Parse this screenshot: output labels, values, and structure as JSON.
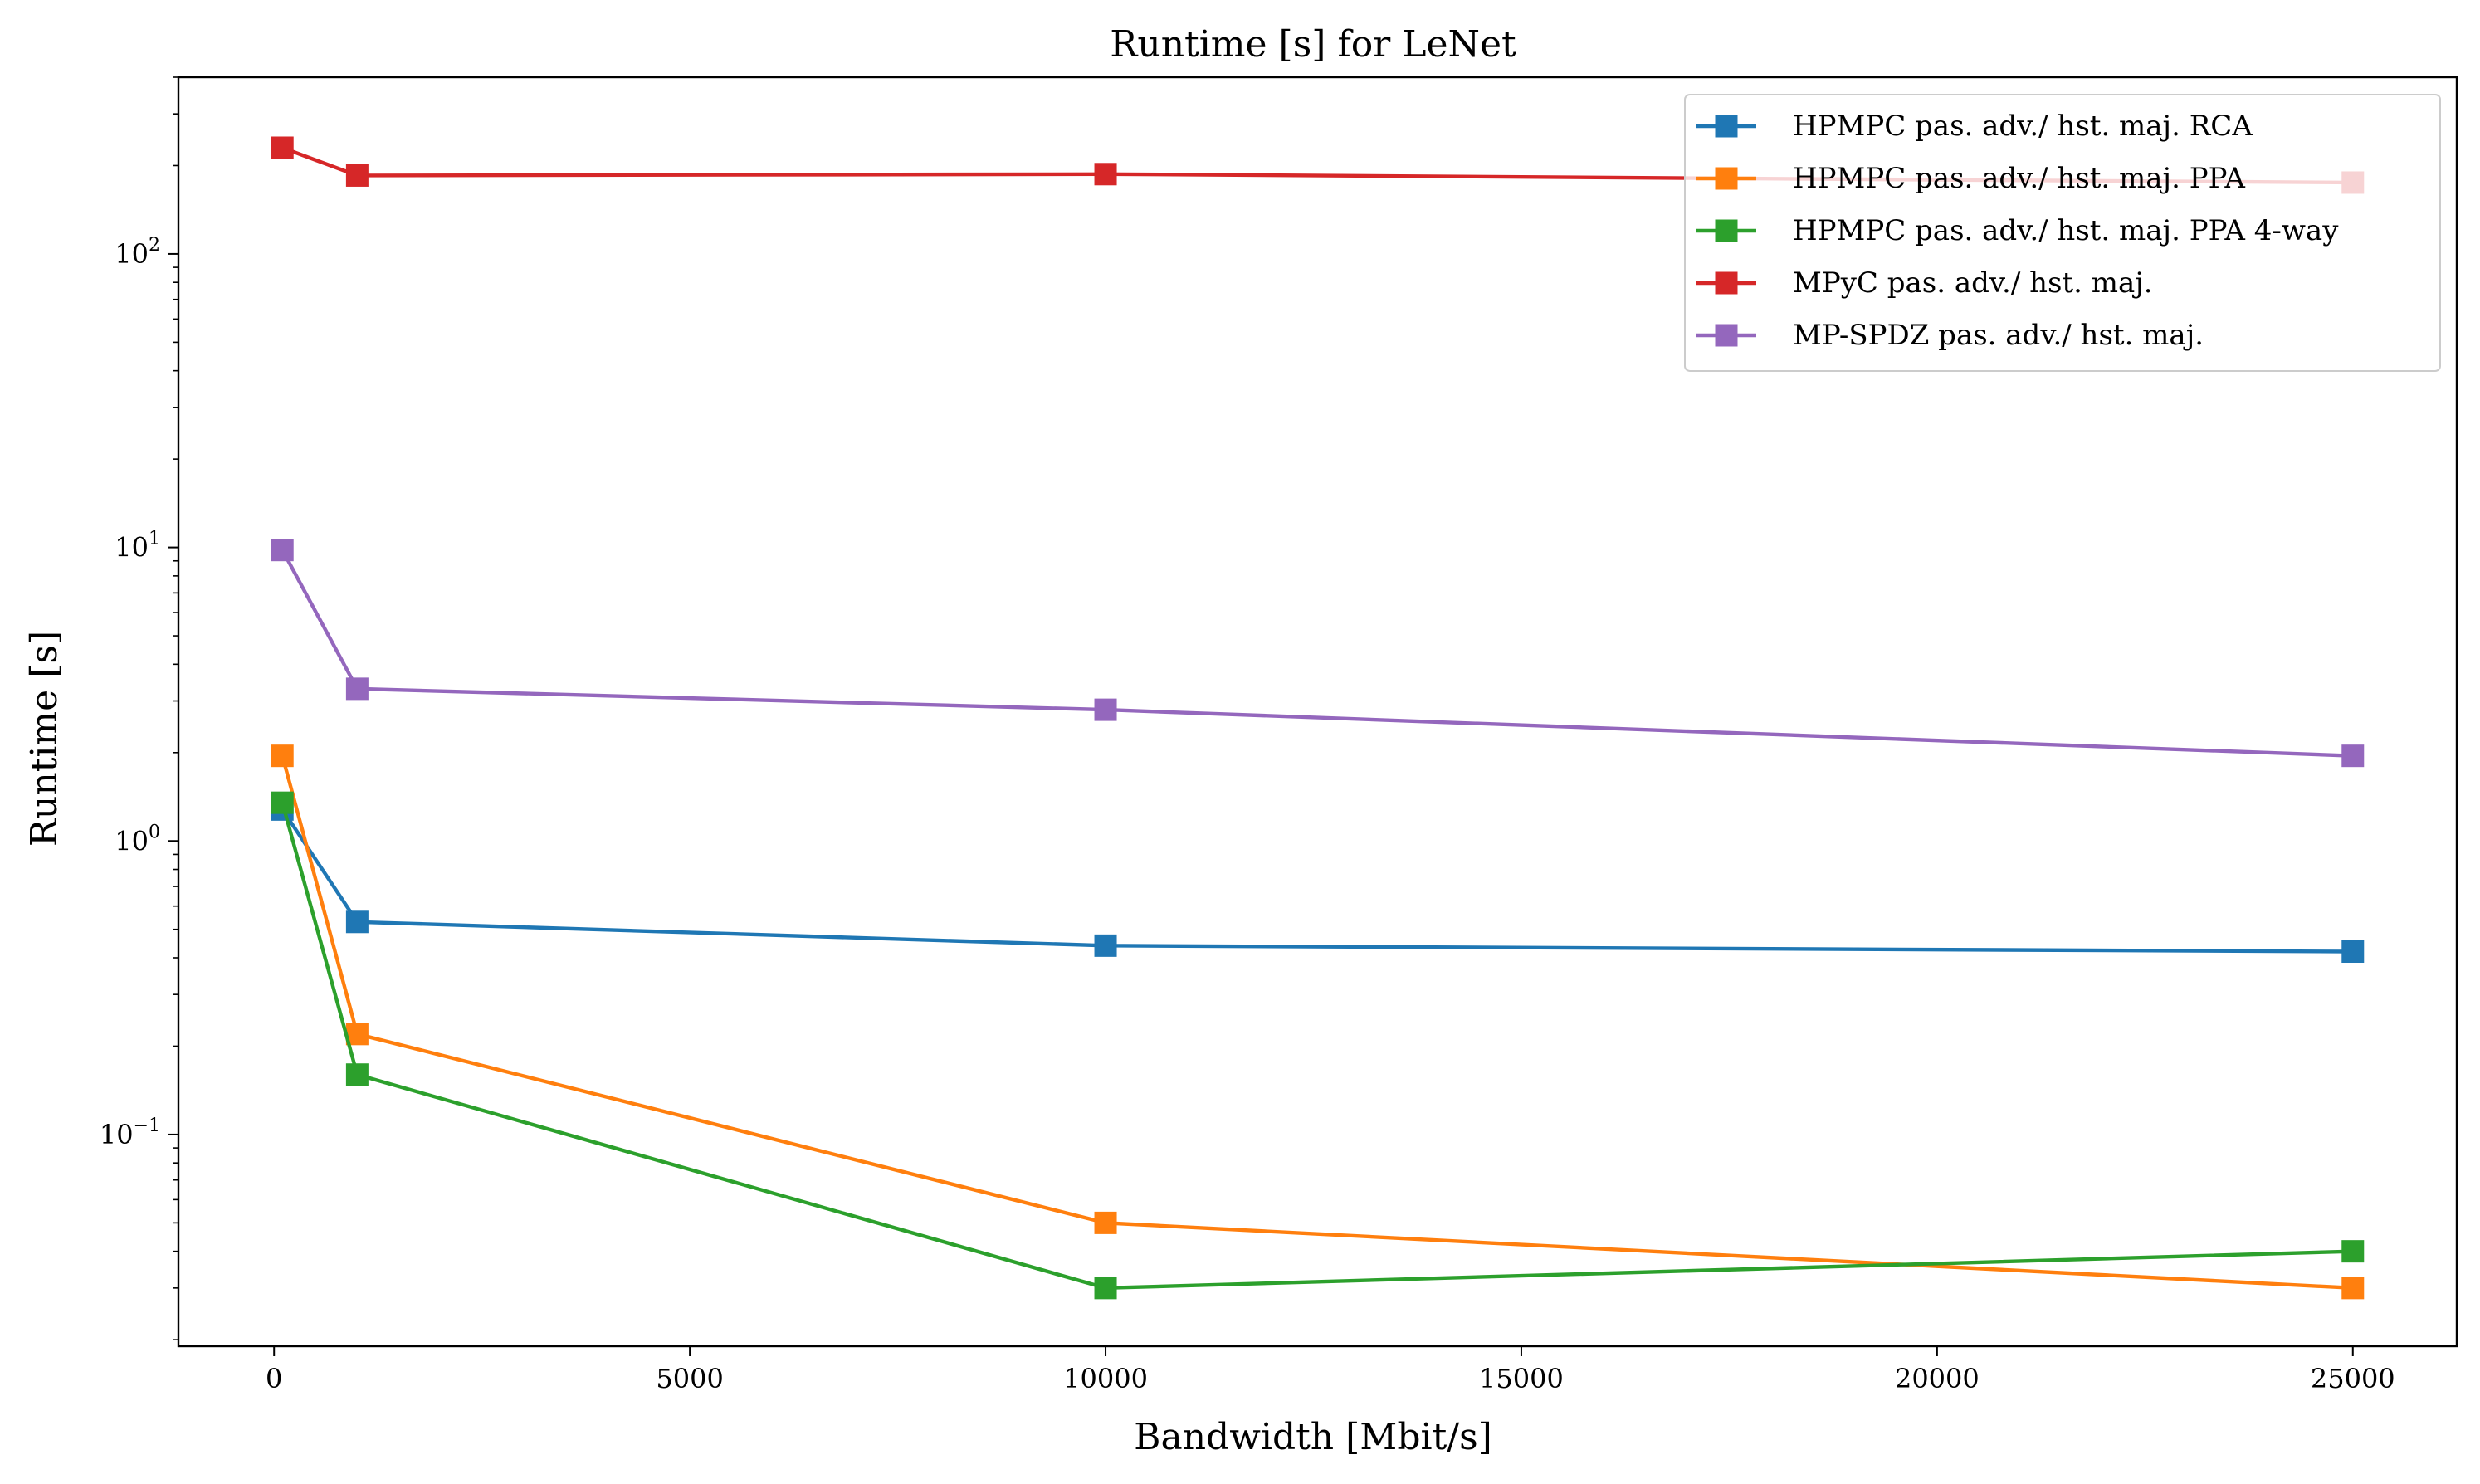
{
  "chart_data": {
    "type": "line",
    "title": "Runtime [s] for LeNet",
    "xlabel": "Bandwidth [Mbit/s]",
    "ylabel": "Runtime [s]",
    "xlim": [
      -1150,
      26250
    ],
    "ylim": [
      0.019,
      400
    ],
    "yscale": "log",
    "grid": false,
    "legend_position": "top-right",
    "x_ticks": [
      {
        "value": 0,
        "label": "0"
      },
      {
        "value": 5000,
        "label": "5000"
      },
      {
        "value": 10000,
        "label": "10000"
      },
      {
        "value": 15000,
        "label": "15000"
      },
      {
        "value": 20000,
        "label": "20000"
      },
      {
        "value": 25000,
        "label": "25000"
      }
    ],
    "y_ticks": [
      {
        "value": 0.1,
        "base": "10",
        "exp": "−1"
      },
      {
        "value": 1,
        "base": "10",
        "exp": "0"
      },
      {
        "value": 10,
        "base": "10",
        "exp": "1"
      },
      {
        "value": 100,
        "base": "10",
        "exp": "2"
      }
    ],
    "x": [
      100,
      1000,
      10000,
      25000
    ],
    "series": [
      {
        "name": "HPMPC pas. adv./ hst. maj. RCA",
        "color": "#1f77b4",
        "values": [
          1.28,
          0.53,
          0.44,
          0.42
        ]
      },
      {
        "name": "HPMPC pas. adv./ hst. maj. PPA",
        "color": "#ff7f0e",
        "values": [
          1.95,
          0.22,
          0.05,
          0.03
        ]
      },
      {
        "name": "HPMPC pas. adv./ hst. maj. PPA 4-way",
        "color": "#2ca02c",
        "values": [
          1.35,
          0.16,
          0.03,
          0.04
        ]
      },
      {
        "name": "MPyC pas. adv./ hst. maj.",
        "color": "#d62728",
        "values": [
          230,
          185,
          187,
          175
        ]
      },
      {
        "name": "MP-SPDZ pas. adv./ hst. maj.",
        "color": "#9467bd",
        "values": [
          9.8,
          3.3,
          2.8,
          1.95
        ]
      }
    ]
  }
}
